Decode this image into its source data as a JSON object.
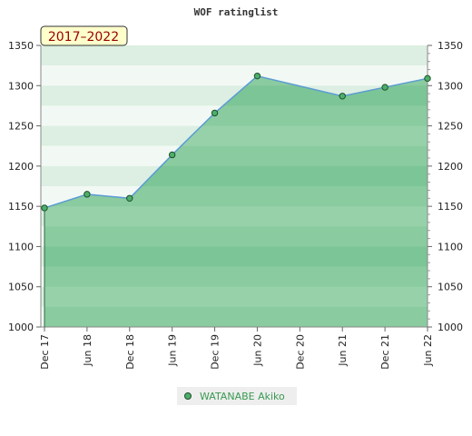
{
  "chart_data": {
    "type": "area",
    "title": "WOF ratinglist",
    "period_badge": "2017–2022",
    "categories": [
      "Dec 17",
      "Jun 18",
      "Dec 18",
      "Jun 19",
      "Dec 19",
      "Jun 20",
      "Dec 20",
      "Jun 21",
      "Dec 21",
      "Jun 22"
    ],
    "series": [
      {
        "name": "WATANABE Akiko",
        "points": [
          {
            "x": "Dec 17",
            "y": 1148
          },
          {
            "x": "Jun 18",
            "y": 1165
          },
          {
            "x": "Dec 18",
            "y": 1160
          },
          {
            "x": "Jun 19",
            "y": 1214
          },
          {
            "x": "Dec 19",
            "y": 1266
          },
          {
            "x": "Jun 20",
            "y": 1312
          },
          {
            "x": "Jun 21",
            "y": 1287
          },
          {
            "x": "Dec 21",
            "y": 1298
          },
          {
            "x": "Jun 22",
            "y": 1309
          }
        ]
      }
    ],
    "ylim": [
      1000,
      1350
    ],
    "yticks": [
      1000,
      1050,
      1100,
      1150,
      1200,
      1250,
      1300,
      1350
    ],
    "y_axis_both_sides": true,
    "legend_position": "bottom",
    "colors": {
      "line": "#5b9bd5",
      "fill": "#7cc596",
      "marker": "#4caf6a",
      "band_light": "#dcefe2",
      "band_white": "#f2f9f4",
      "legend_text": "#3a9a52",
      "badge_bg": "#ffffcc",
      "badge_text": "#990000"
    }
  }
}
